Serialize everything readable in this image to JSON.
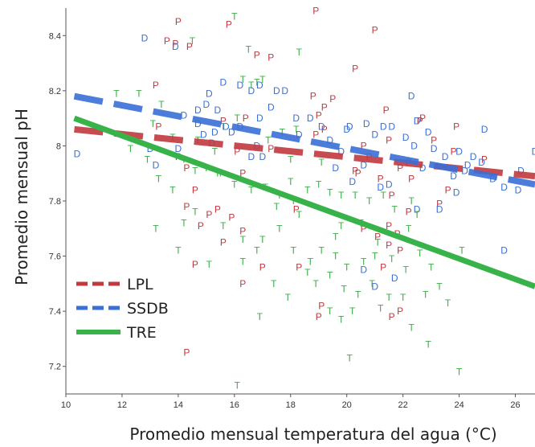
{
  "chart_data": {
    "type": "scatter",
    "title": "",
    "xlabel": "Promedio mensual temperatura del agua (°C)",
    "ylabel": "Promedio mensual pH",
    "xlim": [
      10,
      26.7
    ],
    "ylim": [
      7.1,
      8.5
    ],
    "x_ticks": [
      10,
      12,
      14,
      16,
      18,
      20,
      22,
      24,
      26
    ],
    "y_ticks": [
      7.2,
      7.4,
      7.6,
      7.8,
      8.0,
      8.2,
      8.4
    ],
    "x_tick_labels": [
      "10",
      "12",
      "14",
      "16",
      "18",
      "20",
      "22",
      "24",
      "26"
    ],
    "y_tick_labels": [
      "7.2",
      "7.4",
      "7.6",
      "7.8",
      "8",
      "8.2",
      "8.4"
    ],
    "grid": false,
    "legend_position": "bottom-left",
    "series": [
      {
        "name": "LPL",
        "marker": "P",
        "color": "#c0393f",
        "fit": {
          "style": "dashed",
          "color": "#c0393f",
          "x": [
            10.3,
            26.7
          ],
          "y": [
            8.06,
            7.89
          ]
        },
        "points": [
          [
            13.2,
            8.22
          ],
          [
            13.6,
            8.38
          ],
          [
            14.0,
            8.45
          ],
          [
            13.9,
            8.37
          ],
          [
            14.4,
            8.36
          ],
          [
            15.8,
            8.44
          ],
          [
            16.8,
            8.33
          ],
          [
            17.3,
            8.32
          ],
          [
            18.9,
            8.49
          ],
          [
            21.0,
            8.42
          ],
          [
            19.5,
            8.17
          ],
          [
            20.3,
            8.28
          ],
          [
            21.5,
            8.02
          ],
          [
            20.8,
            7.96
          ],
          [
            22.6,
            8.09
          ],
          [
            23.1,
            8.02
          ],
          [
            23.9,
            8.07
          ],
          [
            23.8,
            7.98
          ],
          [
            24.9,
            7.95
          ],
          [
            19.0,
            8.11
          ],
          [
            18.8,
            8.18
          ],
          [
            18.9,
            8.04
          ],
          [
            19.2,
            8.06
          ],
          [
            17.3,
            7.99
          ],
          [
            16.1,
            7.98
          ],
          [
            22.2,
            7.94
          ],
          [
            21.4,
            8.13
          ],
          [
            20.6,
            8.0
          ],
          [
            21.9,
            7.92
          ],
          [
            22.3,
            7.88
          ],
          [
            23.6,
            7.84
          ],
          [
            19.2,
            8.14
          ],
          [
            13.3,
            8.07
          ],
          [
            15.6,
            8.09
          ],
          [
            16.4,
            8.1
          ],
          [
            20.4,
            7.9
          ],
          [
            21.6,
            7.82
          ],
          [
            20.3,
            7.91
          ],
          [
            14.3,
            7.92
          ],
          [
            14.6,
            7.84
          ],
          [
            14.0,
            7.96
          ],
          [
            14.3,
            7.78
          ],
          [
            15.4,
            7.77
          ],
          [
            14.8,
            7.71
          ],
          [
            15.1,
            7.75
          ],
          [
            15.9,
            7.74
          ],
          [
            16.3,
            7.69
          ],
          [
            15.6,
            7.65
          ],
          [
            14.6,
            7.57
          ],
          [
            16.3,
            7.5
          ],
          [
            17.0,
            7.56
          ],
          [
            18.3,
            7.56
          ],
          [
            19.1,
            7.42
          ],
          [
            19.0,
            7.38
          ],
          [
            21.6,
            7.38
          ],
          [
            21.1,
            7.67
          ],
          [
            21.8,
            7.68
          ],
          [
            21.5,
            7.71
          ],
          [
            22.2,
            7.76
          ],
          [
            21.3,
            7.56
          ],
          [
            21.9,
            7.4
          ],
          [
            21.9,
            7.62
          ],
          [
            14.3,
            7.25
          ],
          [
            18.2,
            7.77
          ],
          [
            21.2,
            7.88
          ],
          [
            20.6,
            7.7
          ],
          [
            22.7,
            8.1
          ],
          [
            21.5,
            7.64
          ],
          [
            23.3,
            7.79
          ],
          [
            16.3,
            7.9
          ]
        ]
      },
      {
        "name": "SSDB",
        "marker": "D",
        "color": "#3a6fd6",
        "fit": {
          "style": "dashed",
          "color": "#3a6fd6",
          "x": [
            10.3,
            26.7
          ],
          "y": [
            8.18,
            7.86
          ]
        },
        "points": [
          [
            12.8,
            8.39
          ],
          [
            13.9,
            8.36
          ],
          [
            10.4,
            7.97
          ],
          [
            15.6,
            8.23
          ],
          [
            16.2,
            8.22
          ],
          [
            16.6,
            8.2
          ],
          [
            16.9,
            8.22
          ],
          [
            17.5,
            8.2
          ],
          [
            17.8,
            8.2
          ],
          [
            15.0,
            8.15
          ],
          [
            15.1,
            8.19
          ],
          [
            15.4,
            8.13
          ],
          [
            14.7,
            8.08
          ],
          [
            14.9,
            8.04
          ],
          [
            15.3,
            8.05
          ],
          [
            15.7,
            8.07
          ],
          [
            16.2,
            8.07
          ],
          [
            16.9,
            8.1
          ],
          [
            17.3,
            8.14
          ],
          [
            18.2,
            8.1
          ],
          [
            18.7,
            8.1
          ],
          [
            19.1,
            8.07
          ],
          [
            19.4,
            8.02
          ],
          [
            19.8,
            7.98
          ],
          [
            20.0,
            8.06
          ],
          [
            20.7,
            8.08
          ],
          [
            21.3,
            8.07
          ],
          [
            21.6,
            8.07
          ],
          [
            22.1,
            8.03
          ],
          [
            22.4,
            8.0
          ],
          [
            22.5,
            8.09
          ],
          [
            22.9,
            8.05
          ],
          [
            23.1,
            7.99
          ],
          [
            23.8,
            7.89
          ],
          [
            24.2,
            7.91
          ],
          [
            24.5,
            7.96
          ],
          [
            25.2,
            7.88
          ],
          [
            25.6,
            7.85
          ],
          [
            26.1,
            7.84
          ],
          [
            26.7,
            7.98
          ],
          [
            24.9,
            8.06
          ],
          [
            15.2,
            8.01
          ],
          [
            16.6,
            7.96
          ],
          [
            17.0,
            7.96
          ],
          [
            16.8,
            8.0
          ],
          [
            13.2,
            7.93
          ],
          [
            13.0,
            7.99
          ],
          [
            14.0,
            7.99
          ],
          [
            20.2,
            7.87
          ],
          [
            20.6,
            7.93
          ],
          [
            21.2,
            7.85
          ],
          [
            21.5,
            7.86
          ],
          [
            21.0,
            8.04
          ],
          [
            22.3,
            8.18
          ],
          [
            22.5,
            7.77
          ],
          [
            23.3,
            7.77
          ],
          [
            23.9,
            7.83
          ],
          [
            21.0,
            7.49
          ],
          [
            21.7,
            7.52
          ],
          [
            25.6,
            7.62
          ],
          [
            24.0,
            7.98
          ],
          [
            20.6,
            7.55
          ],
          [
            24.8,
            7.94
          ],
          [
            26.2,
            7.91
          ],
          [
            18.3,
            8.04
          ],
          [
            20.1,
            8.07
          ],
          [
            22.7,
            7.92
          ],
          [
            23.5,
            7.96
          ],
          [
            19.6,
            7.92
          ],
          [
            24.3,
            7.93
          ],
          [
            14.7,
            8.13
          ],
          [
            14.2,
            8.11
          ],
          [
            15.9,
            8.05
          ]
        ]
      },
      {
        "name": "TRE",
        "marker": "T",
        "color": "#3fae49",
        "fit": {
          "style": "solid",
          "color": "#37b34a",
          "x": [
            10.3,
            26.7
          ],
          "y": [
            8.1,
            7.49
          ]
        },
        "points": [
          [
            11.8,
            8.19
          ],
          [
            12.6,
            8.19
          ],
          [
            13.4,
            8.15
          ],
          [
            14.5,
            8.38
          ],
          [
            16.0,
            8.47
          ],
          [
            16.5,
            8.35
          ],
          [
            16.3,
            8.24
          ],
          [
            16.6,
            8.22
          ],
          [
            16.8,
            8.23
          ],
          [
            17.0,
            8.24
          ],
          [
            13.1,
            8.08
          ],
          [
            13.8,
            8.03
          ],
          [
            14.7,
            8.02
          ],
          [
            15.3,
            7.98
          ],
          [
            15.6,
            8.07
          ],
          [
            16.1,
            8.1
          ],
          [
            17.2,
            8.02
          ],
          [
            17.7,
            8.05
          ],
          [
            18.2,
            8.06
          ],
          [
            18.3,
            8.34
          ],
          [
            12.3,
            7.99
          ],
          [
            12.9,
            7.95
          ],
          [
            13.3,
            7.88
          ],
          [
            13.8,
            7.84
          ],
          [
            14.2,
            7.95
          ],
          [
            14.6,
            7.91
          ],
          [
            15.0,
            7.92
          ],
          [
            15.5,
            7.9
          ],
          [
            16.0,
            7.86
          ],
          [
            16.6,
            7.84
          ],
          [
            17.1,
            7.85
          ],
          [
            17.6,
            7.82
          ],
          [
            18.0,
            7.87
          ],
          [
            18.6,
            7.84
          ],
          [
            19.0,
            7.86
          ],
          [
            19.4,
            7.83
          ],
          [
            19.8,
            7.82
          ],
          [
            20.3,
            7.82
          ],
          [
            20.8,
            7.8
          ],
          [
            21.3,
            7.82
          ],
          [
            21.7,
            7.77
          ],
          [
            22.3,
            7.8
          ],
          [
            14.2,
            7.72
          ],
          [
            14.6,
            7.76
          ],
          [
            15.6,
            7.71
          ],
          [
            16.3,
            7.66
          ],
          [
            17.0,
            7.66
          ],
          [
            17.6,
            7.7
          ],
          [
            18.1,
            7.62
          ],
          [
            18.7,
            7.58
          ],
          [
            19.1,
            7.62
          ],
          [
            19.6,
            7.6
          ],
          [
            20.0,
            7.56
          ],
          [
            20.6,
            7.58
          ],
          [
            21.0,
            7.6
          ],
          [
            21.6,
            7.59
          ],
          [
            22.1,
            7.55
          ],
          [
            13.2,
            7.7
          ],
          [
            14.0,
            7.62
          ],
          [
            15.1,
            7.57
          ],
          [
            16.3,
            7.58
          ],
          [
            16.8,
            7.62
          ],
          [
            18.3,
            7.75
          ],
          [
            18.6,
            7.54
          ],
          [
            18.9,
            7.5
          ],
          [
            19.4,
            7.53
          ],
          [
            19.9,
            7.48
          ],
          [
            20.4,
            7.46
          ],
          [
            20.9,
            7.5
          ],
          [
            21.5,
            7.45
          ],
          [
            22.0,
            7.45
          ],
          [
            22.8,
            7.46
          ],
          [
            23.3,
            7.49
          ],
          [
            19.4,
            7.4
          ],
          [
            19.8,
            7.37
          ],
          [
            20.2,
            7.4
          ],
          [
            21.2,
            7.41
          ],
          [
            22.3,
            7.34
          ],
          [
            23.6,
            7.43
          ],
          [
            22.9,
            7.28
          ],
          [
            24.0,
            7.18
          ],
          [
            16.1,
            7.13
          ],
          [
            20.1,
            7.23
          ],
          [
            15.4,
            7.9
          ],
          [
            17.5,
            7.78
          ],
          [
            19.8,
            7.71
          ],
          [
            20.5,
            7.72
          ],
          [
            22.2,
            7.7
          ],
          [
            22.6,
            7.61
          ],
          [
            23.0,
            7.56
          ],
          [
            18.0,
            7.95
          ],
          [
            19.1,
            7.94
          ],
          [
            17.4,
            7.5
          ],
          [
            18.1,
            7.8
          ],
          [
            19.6,
            7.67
          ],
          [
            21.1,
            7.65
          ],
          [
            22.5,
            7.75
          ],
          [
            24.1,
            7.62
          ],
          [
            16.9,
            7.38
          ],
          [
            17.9,
            7.45
          ]
        ]
      }
    ]
  }
}
